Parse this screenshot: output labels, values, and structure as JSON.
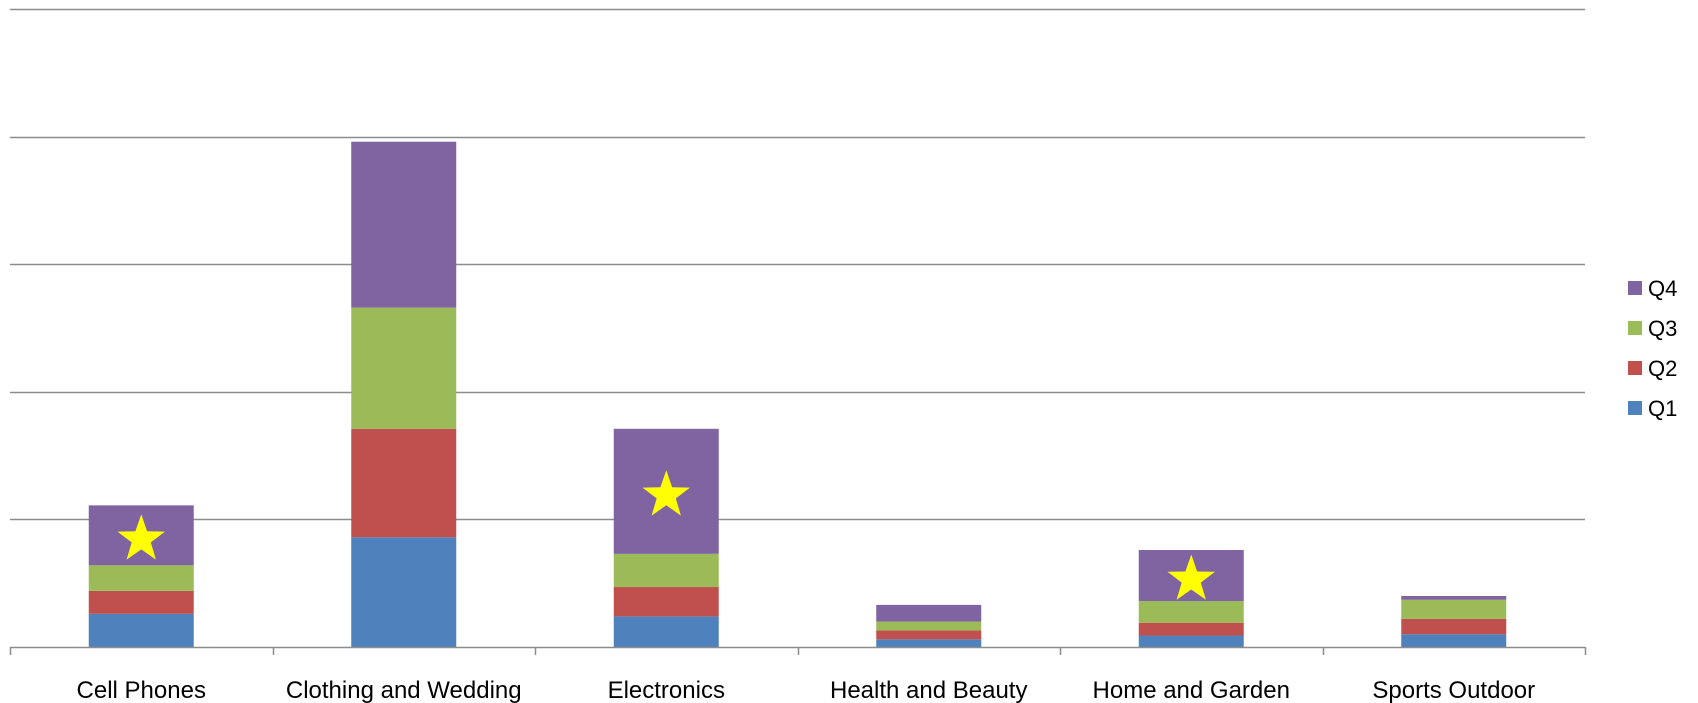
{
  "chart_data": {
    "type": "bar",
    "stacked": true,
    "categories": [
      "Cell Phones",
      "Clothing and Wedding",
      "Electronics",
      "Health and Beauty",
      "Home and Garden",
      "Sports Outdoor"
    ],
    "series": [
      {
        "name": "Q1",
        "color": "#4f81bd",
        "values": [
          26,
          86,
          24,
          6,
          9,
          10
        ]
      },
      {
        "name": "Q2",
        "color": "#c0504d",
        "values": [
          18,
          85,
          23,
          7,
          10,
          12
        ]
      },
      {
        "name": "Q3",
        "color": "#9bbb59",
        "values": [
          20,
          95,
          26,
          7,
          17,
          15
        ]
      },
      {
        "name": "Q4",
        "color": "#8064a2",
        "values": [
          47,
          130,
          98,
          13,
          40,
          3
        ]
      }
    ],
    "highlighted_categories": [
      "Cell Phones",
      "Electronics",
      "Home and Garden"
    ],
    "highlight_marker": "star",
    "highlight_color": "#ffff00",
    "ylim": [
      0,
      500
    ],
    "ytick_step": 100,
    "grid": true,
    "legend": {
      "position": "right",
      "order": [
        "Q4",
        "Q3",
        "Q2",
        "Q1"
      ]
    },
    "title": "",
    "xlabel": "",
    "ylabel": ""
  }
}
